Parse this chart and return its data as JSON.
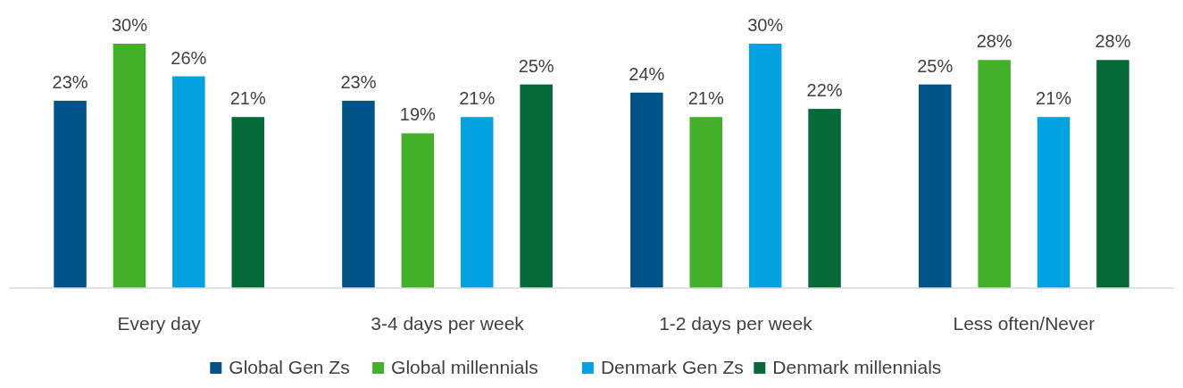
{
  "chart_data": {
    "type": "bar",
    "categories": [
      "Every day",
      "3-4 days per week",
      "1-2 days per week",
      "Less often/Never"
    ],
    "series": [
      {
        "name": "Global Gen Zs",
        "color": "#005487",
        "values": [
          23,
          23,
          24,
          25
        ],
        "value_labels": [
          "23%",
          "23%",
          "24%",
          "25%"
        ]
      },
      {
        "name": "Global millennials",
        "color": "#43b02a",
        "values": [
          30,
          19,
          21,
          28
        ],
        "value_labels": [
          "30%",
          "19%",
          "21%",
          "28%"
        ]
      },
      {
        "name": "Denmark Gen Zs",
        "color": "#00a3e0",
        "values": [
          26,
          21,
          30,
          21
        ],
        "value_labels": [
          "26%",
          "21%",
          "30%",
          "21%"
        ]
      },
      {
        "name": "Denmark millennials",
        "color": "#046a38",
        "values": [
          21,
          25,
          22,
          28
        ],
        "value_labels": [
          "21%",
          "25%",
          "22%",
          "28%"
        ]
      }
    ],
    "legend": "bottom"
  }
}
